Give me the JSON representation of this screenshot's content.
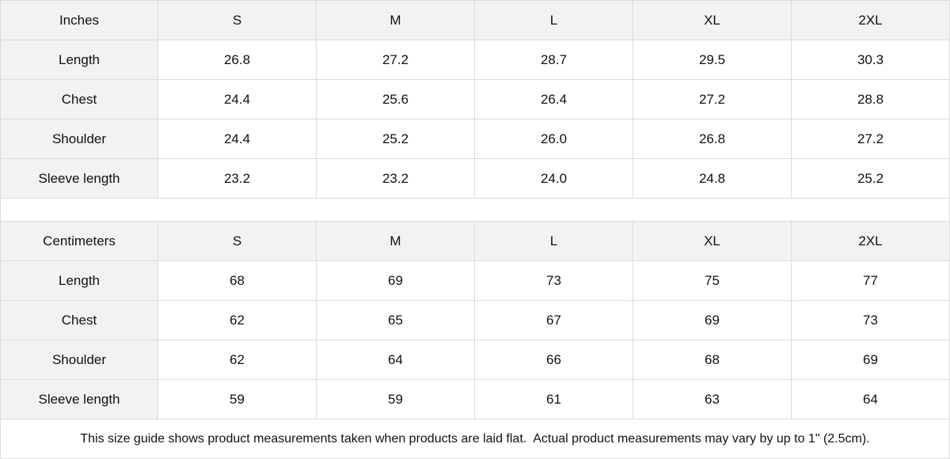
{
  "columns": [
    "S",
    "M",
    "L",
    "XL",
    "2XL"
  ],
  "tables": [
    {
      "unit": "Inches",
      "rows": [
        {
          "label": "Length",
          "values": [
            "26.8",
            "27.2",
            "28.7",
            "29.5",
            "30.3"
          ]
        },
        {
          "label": "Chest",
          "values": [
            "24.4",
            "25.6",
            "26.4",
            "27.2",
            "28.8"
          ]
        },
        {
          "label": "Shoulder",
          "values": [
            "24.4",
            "25.2",
            "26.0",
            "26.8",
            "27.2"
          ]
        },
        {
          "label": "Sleeve length",
          "values": [
            "23.2",
            "23.2",
            "24.0",
            "24.8",
            "25.2"
          ]
        }
      ]
    },
    {
      "unit": "Centimeters",
      "rows": [
        {
          "label": "Length",
          "values": [
            "68",
            "69",
            "73",
            "75",
            "77"
          ]
        },
        {
          "label": "Chest",
          "values": [
            "62",
            "65",
            "67",
            "69",
            "73"
          ]
        },
        {
          "label": "Shoulder",
          "values": [
            "62",
            "64",
            "66",
            "68",
            "69"
          ]
        },
        {
          "label": "Sleeve length",
          "values": [
            "59",
            "59",
            "61",
            "63",
            "64"
          ]
        }
      ]
    }
  ],
  "note": "This size guide shows product measurements taken when products are laid flat.  Actual product measurements may vary by up to 1\" (2.5cm).",
  "colors": {
    "header_bg": "#f2f2f2",
    "border": "#dcdcdc"
  }
}
